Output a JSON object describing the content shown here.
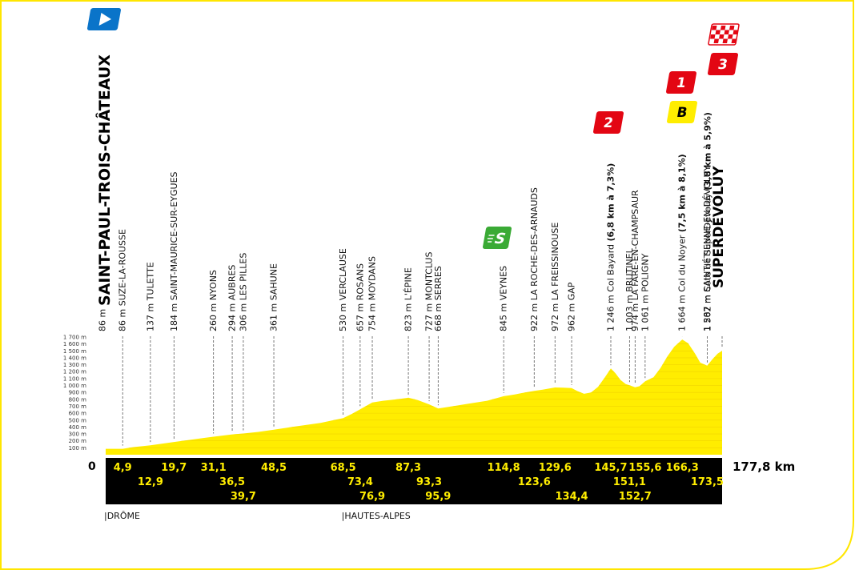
{
  "start_name": "SAINT-PAUL-TROIS-CHÂTEAUX",
  "finish_name": "SUPERDÉVOLUY",
  "total_distance": "177,8 km",
  "start_km": "0",
  "colors": {
    "yellow": "#ffed00",
    "black": "#000000",
    "border": "#ffe600",
    "blue": "#0a74c9",
    "red": "#e30613",
    "green": "#3aaa35"
  },
  "altitude_scale": [
    "100 m",
    "200 m",
    "300 m",
    "400 m",
    "500 m",
    "600 m",
    "700 m",
    "800 m",
    "900 m",
    "1 000 m",
    "1 100 m",
    "1 200 m",
    "1 300 m",
    "1 400 m",
    "1 500 m",
    "1 600 m",
    "1 700 m"
  ],
  "regions": [
    {
      "label": "DRÔME",
      "km": 0
    },
    {
      "label": "HAUTES-ALPES",
      "km": 68.5
    }
  ],
  "start_waypoint": {
    "alt": "86 m",
    "km": 0
  },
  "waypoints": [
    {
      "km": 4.9,
      "km_label": "4,9",
      "row": 1,
      "parts": [
        {
          "t": "86 m SUZE-LA-ROUSSE"
        }
      ]
    },
    {
      "km": 12.9,
      "km_label": "12,9",
      "row": 2,
      "parts": [
        {
          "t": "137 m TULETTE"
        }
      ]
    },
    {
      "km": 19.7,
      "km_label": "19,7",
      "row": 1,
      "parts": [
        {
          "t": "184 m SAINT-MAURICE-SUR-EYGUES"
        }
      ]
    },
    {
      "km": 31.1,
      "km_label": "31,1",
      "row": 1,
      "parts": [
        {
          "t": "260 m NYONS"
        }
      ]
    },
    {
      "km": 36.5,
      "km_label": "36,5",
      "row": 2,
      "parts": [
        {
          "t": "294 m AUBRES"
        }
      ]
    },
    {
      "km": 39.7,
      "km_label": "39,7",
      "row": 3,
      "parts": [
        {
          "t": "306 m LES PILLES"
        }
      ]
    },
    {
      "km": 48.5,
      "km_label": "48,5",
      "row": 1,
      "parts": [
        {
          "t": "361 m SAHUNE"
        }
      ]
    },
    {
      "km": 68.5,
      "km_label": "68,5",
      "row": 1,
      "parts": [
        {
          "t": "530 m VERCLAUSE"
        }
      ]
    },
    {
      "km": 73.4,
      "km_label": "73,4",
      "row": 2,
      "parts": [
        {
          "t": "657 m ROSANS"
        }
      ]
    },
    {
      "km": 76.9,
      "km_label": "76,9",
      "row": 3,
      "parts": [
        {
          "t": "754 m MOYDANS"
        }
      ]
    },
    {
      "km": 87.3,
      "km_label": "87,3",
      "row": 1,
      "parts": [
        {
          "t": "823 m L'ÉPINE"
        }
      ]
    },
    {
      "km": 93.3,
      "km_label": "93,3",
      "row": 2,
      "parts": [
        {
          "t": "727 m MONTCLUS"
        }
      ]
    },
    {
      "km": 95.9,
      "km_label": "95,9",
      "row": 3,
      "parts": [
        {
          "t": "668 m SERRES"
        }
      ]
    },
    {
      "km": 114.8,
      "km_label": "114,8",
      "row": 1,
      "parts": [
        {
          "t": "845 m VEYNES"
        }
      ]
    },
    {
      "km": 123.6,
      "km_label": "123,6",
      "row": 2,
      "parts": [
        {
          "t": "922 m LA ROCHE-DES-ARNAUDS"
        }
      ]
    },
    {
      "km": 129.6,
      "km_label": "129,6",
      "row": 1,
      "parts": [
        {
          "t": "972 m LA FREISSINOUSE"
        }
      ]
    },
    {
      "km": 134.4,
      "km_label": "134,4",
      "row": 3,
      "parts": [
        {
          "t": "962 m GAP"
        }
      ]
    },
    {
      "km": 145.7,
      "km_label": "145,7",
      "row": 1,
      "parts": [
        {
          "t": "1 246 m Col Bayard "
        },
        {
          "t": "(6,8 km à 7,3%)",
          "b": true
        }
      ]
    },
    {
      "km": 151.1,
      "km_label": "151,1",
      "row": 2,
      "parts": [
        {
          "t": "1 003 m BRUTINEL"
        }
      ]
    },
    {
      "km": 152.7,
      "km_label": "152,7",
      "row": 3,
      "parts": [
        {
          "t": "974 m LA FARE-EN-CHAMPSAUR"
        }
      ]
    },
    {
      "km": 155.6,
      "km_label": "155,6",
      "row": 1,
      "parts": [
        {
          "t": "1 061 m POLIGNY"
        }
      ]
    },
    {
      "km": 166.3,
      "km_label": "166,3",
      "row": 1,
      "parts": [
        {
          "t": "1 664 m Col du Noyer "
        },
        {
          "t": "(7,5 km à 8,1%)",
          "b": true
        }
      ]
    },
    {
      "km": 173.5,
      "km_label": "173,5",
      "row": 2,
      "parts": [
        {
          "t": "1 287 m SAINT-ÉTIENNE-EN-DÉVOLUY"
        }
      ]
    }
  ],
  "finish_waypoint": {
    "parts": [
      {
        "t": "1 502 m Côte de SuperDévoluy "
      },
      {
        "t": "(3,8 km à 5,9%)",
        "b": true
      }
    ]
  },
  "markers": {
    "start": {
      "icon": "start-flag-icon"
    },
    "sprint": {
      "icon": "sprint-icon",
      "label": "S"
    },
    "climb_bayard": {
      "icon": "climb-category-icon",
      "label": "2"
    },
    "climb_noyer": {
      "icon": "climb-category-icon",
      "label": "1"
    },
    "bonus": {
      "icon": "bonus-icon",
      "label": "B"
    },
    "climb_superdevoluy": {
      "icon": "climb-category-icon",
      "label": "3"
    },
    "finish": {
      "icon": "finish-flag-icon"
    }
  },
  "chart_data": {
    "type": "area",
    "xlabel": "",
    "ylabel": "",
    "xlim": [
      0,
      177.8
    ],
    "ylim": [
      0,
      1700
    ],
    "x": [
      0,
      4.9,
      8,
      12.9,
      19.7,
      25,
      31.1,
      36.5,
      39.7,
      44,
      48.5,
      55,
      62,
      68.5,
      71,
      73.4,
      76.9,
      80,
      84,
      87.3,
      90,
      93.3,
      95.9,
      100,
      105,
      110,
      114.8,
      118,
      120,
      123.6,
      126,
      129.6,
      132,
      134.4,
      136,
      138,
      140,
      142,
      144,
      145.7,
      147,
      148.5,
      150,
      151.1,
      152.7,
      154,
      155.6,
      158,
      160,
      162,
      164,
      166.3,
      168,
      170,
      171.5,
      173.5,
      175,
      176.5,
      177.8
    ],
    "y": [
      86,
      86,
      110,
      137,
      184,
      220,
      260,
      294,
      306,
      330,
      361,
      410,
      460,
      530,
      590,
      657,
      754,
      780,
      800,
      823,
      790,
      727,
      668,
      700,
      740,
      780,
      845,
      870,
      890,
      922,
      940,
      972,
      968,
      962,
      920,
      880,
      900,
      980,
      1120,
      1246,
      1180,
      1080,
      1020,
      1003,
      974,
      990,
      1061,
      1120,
      1250,
      1420,
      1560,
      1664,
      1610,
      1460,
      1330,
      1287,
      1380,
      1460,
      1502
    ]
  }
}
